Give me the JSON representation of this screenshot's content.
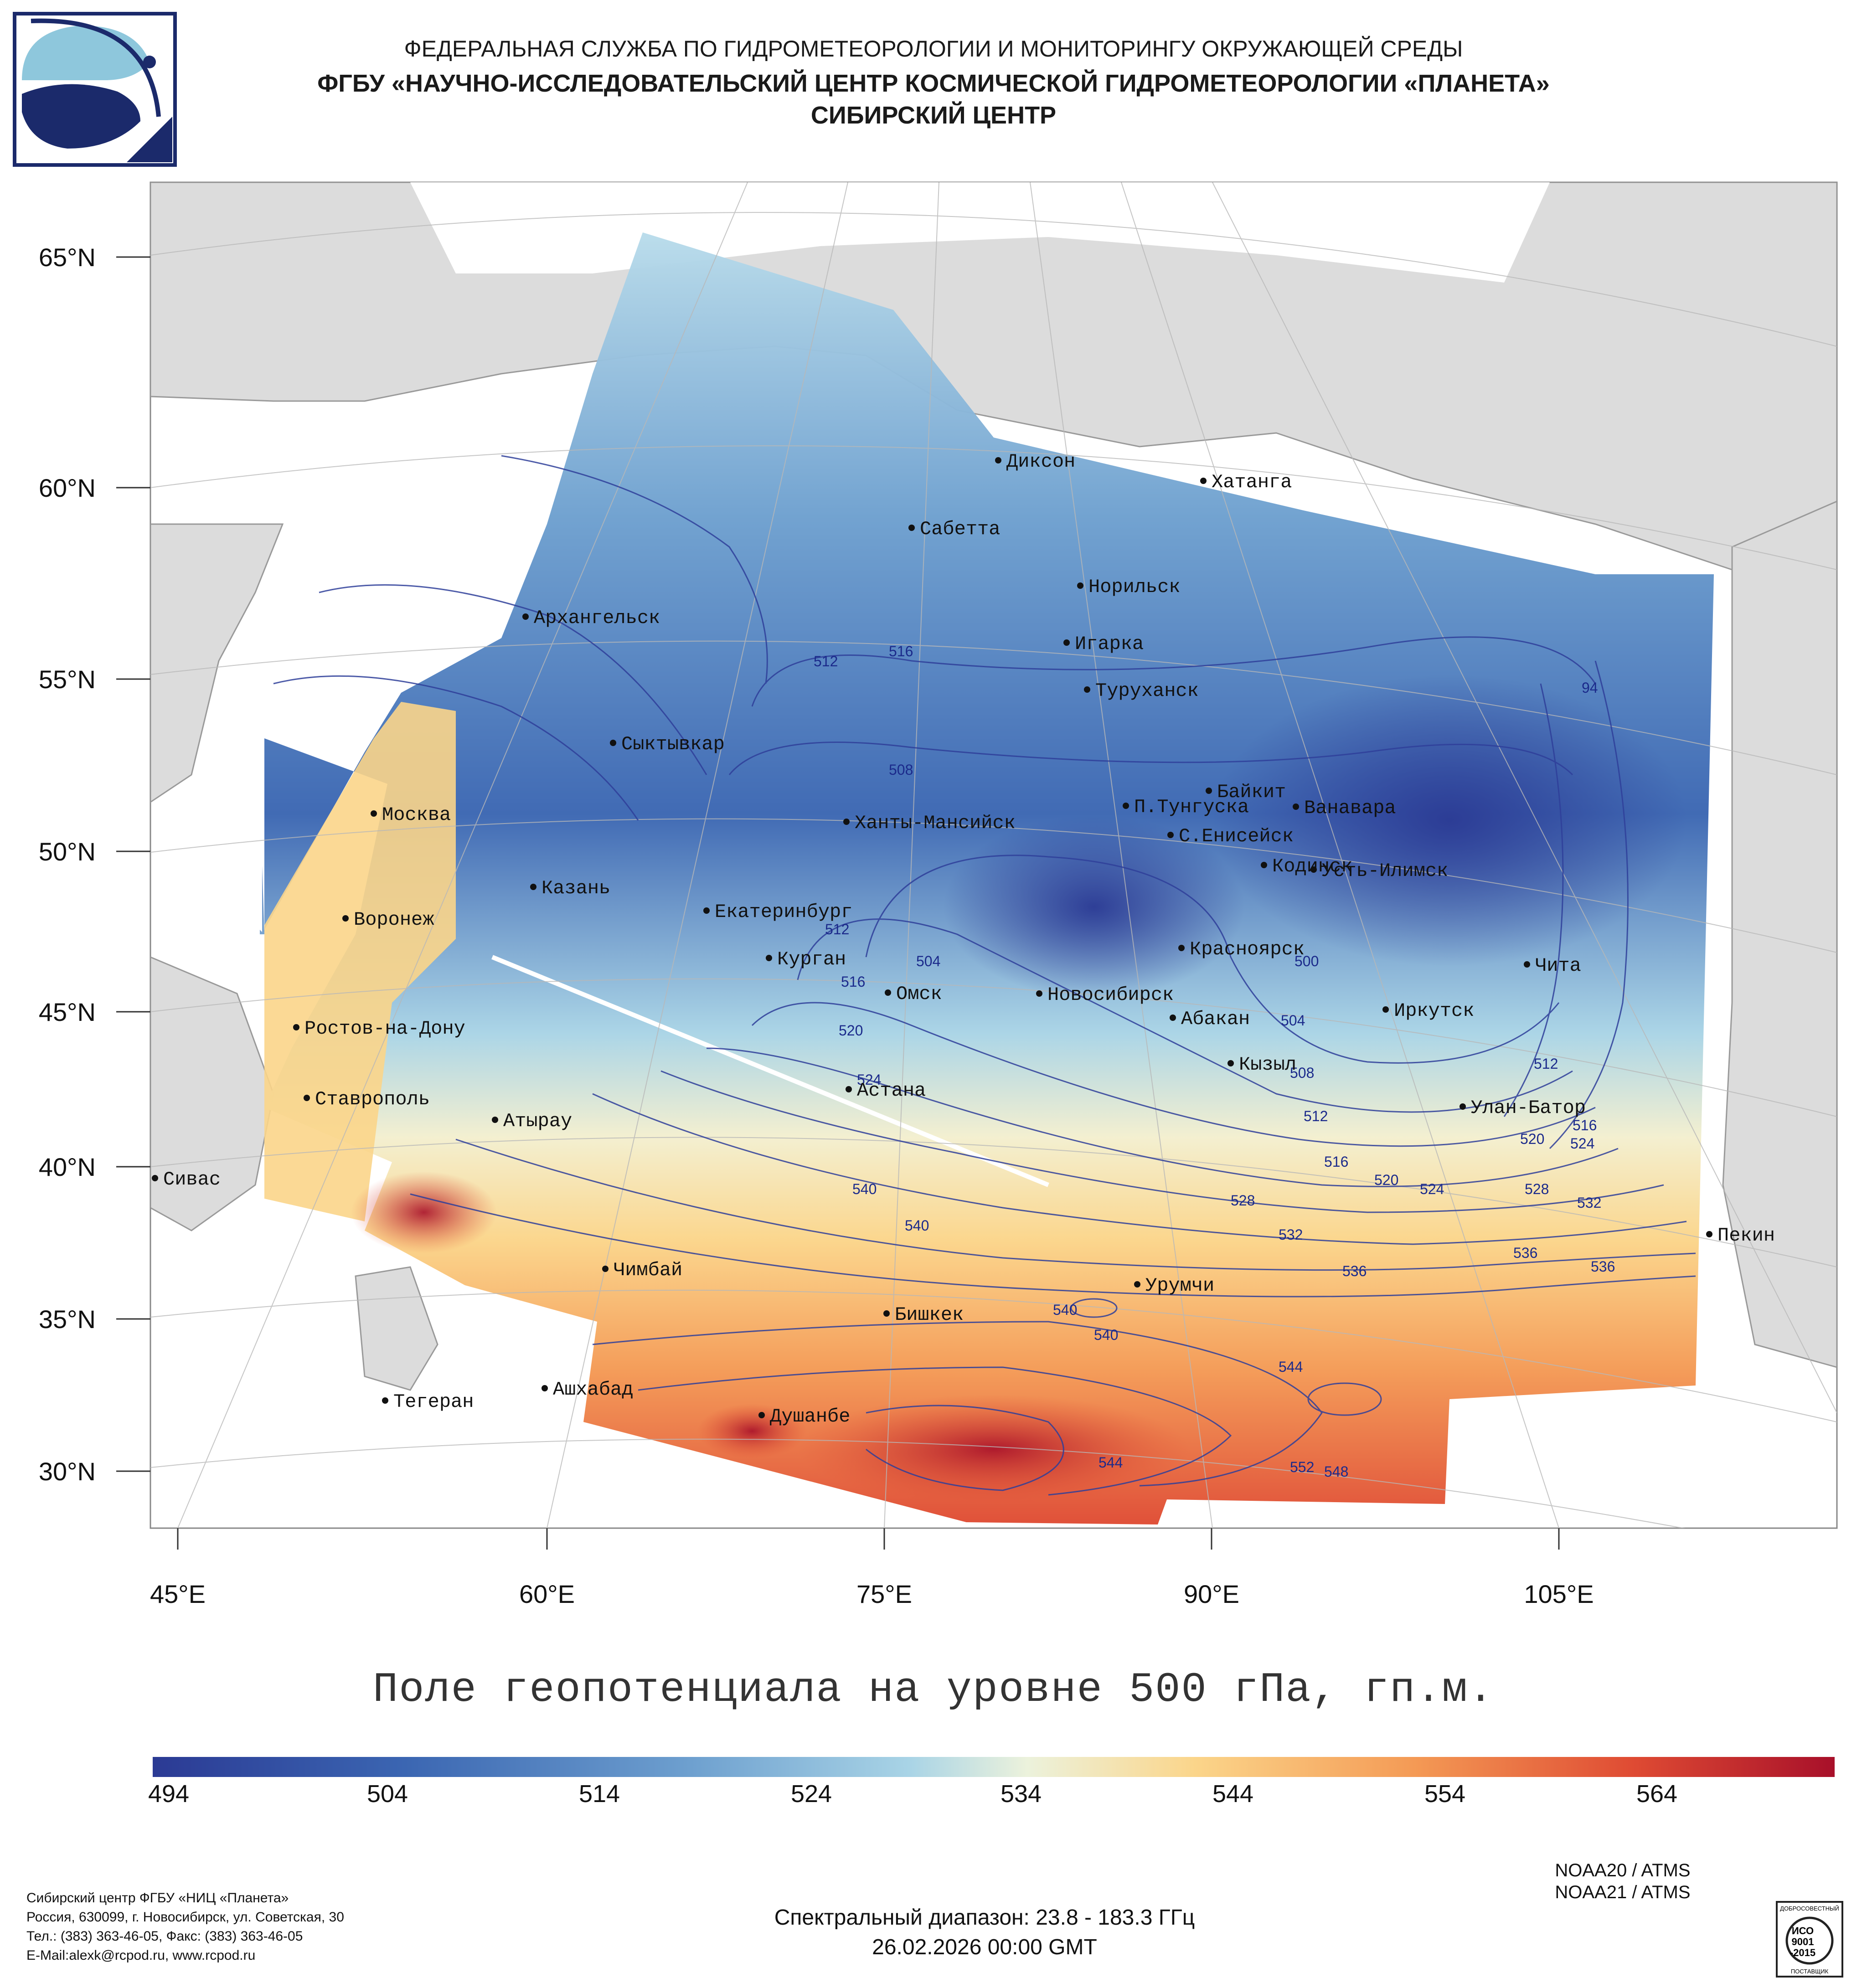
{
  "header": {
    "line1": "ФЕДЕРАЛЬНАЯ СЛУЖБА ПО ГИДРОМЕТЕОРОЛОГИИ И МОНИТОРИНГУ ОКРУЖАЮЩЕЙ СРЕДЫ",
    "line2": "ФГБУ «НАУЧНО-ИССЛЕДОВАТЕЛЬСКИЙ ЦЕНТР КОСМИЧЕСКОЙ ГИДРОМЕТЕОРОЛОГИИ «ПЛАНЕТА»",
    "line3": "СИБИРСКИЙ ЦЕНТР"
  },
  "map": {
    "lat_labels": [
      "65°N",
      "60°N",
      "55°N",
      "50°N",
      "45°N",
      "40°N",
      "35°N",
      "30°N"
    ],
    "lon_labels": [
      "45°E",
      "60°E",
      "75°E",
      "90°E",
      "105°E"
    ],
    "cities": [
      "Диксон",
      "Хатанга",
      "Сабетта",
      "Норильск",
      "Архангельск",
      "Игарка",
      "Туруханск",
      "Сыктывкар",
      "Байкит",
      "П.Тунгуска",
      "Ванавара",
      "Москва",
      "Ханты-Мансийск",
      "С.Енисейск",
      "Кодинск",
      "Усть-Илимск",
      "Казань",
      "Екатеринбург",
      "Воронеж",
      "Красноярск",
      "Курган",
      "Чита",
      "Омск",
      "Новосибирск",
      "Иркутск",
      "Ростов-на-Дону",
      "Абакан",
      "Кызыл",
      "Астана",
      "Ставрополь",
      "Улан-Батор",
      "Атырау",
      "Сивас",
      "Пекин",
      "Чимбай",
      "Урумчи",
      "Бишкек",
      "Ашхабад",
      "Тегеран",
      "Душанбе"
    ],
    "contour_labels": [
      "512",
      "516",
      "508",
      "94",
      "504",
      "512",
      "516",
      "520",
      "524",
      "500",
      "504",
      "508",
      "512",
      "512",
      "516",
      "516",
      "520",
      "520",
      "524",
      "524",
      "528",
      "528",
      "532",
      "532",
      "536",
      "536",
      "540",
      "540",
      "536",
      "540",
      "540",
      "544",
      "548",
      "552",
      "544"
    ]
  },
  "title": "Поле геопотенциала на уровне 500 гПа, гп.м.",
  "colorbar": {
    "ticks": [
      "494",
      "504",
      "514",
      "524",
      "534",
      "544",
      "554",
      "564"
    ],
    "colors": [
      "#2b3a94",
      "#3b66b2",
      "#6ea0cf",
      "#a9d4e6",
      "#ecf2dc",
      "#fbd58a",
      "#f49a55",
      "#df4b33",
      "#a8102a"
    ]
  },
  "footer": {
    "address": [
      "Сибирский центр ФГБУ «НИЦ «Планета»",
      "Россия, 630099, г. Новосибирск, ул. Советская, 30",
      "Тел.: (383) 363-46-05, Факс: (383) 363-46-05",
      "E-Mail:alexk@rcpod.ru, www.rcpod.ru"
    ],
    "satellites": [
      "NOAA20 / ATMS",
      "NOAA21 / ATMS"
    ],
    "spectral": "Спектральный диапазон: 23.8 - 183.3 ГГц",
    "datetime": "26.02.2026 00:00 GMT",
    "iso_badge": [
      "ДОБРОСОВЕСТНЫЙ",
      "ИСО",
      "9001",
      "-2015",
      "ПОСТАВЩИК"
    ]
  }
}
